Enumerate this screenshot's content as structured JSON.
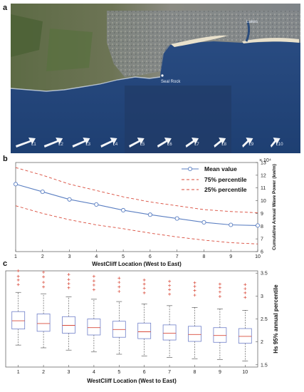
{
  "panels": {
    "a": "a",
    "b": "b",
    "c": "c"
  },
  "map": {
    "place_labels": [
      "Seal Rock",
      "Lakes"
    ],
    "location_labels": [
      "L1",
      "L2",
      "L3",
      "L4",
      "L5",
      "L6",
      "L7",
      "L8",
      "L9",
      "L10"
    ]
  },
  "chart_data": [
    {
      "type": "line",
      "x": [
        1,
        2,
        3,
        4,
        5,
        6,
        7,
        8,
        9,
        10
      ],
      "series": [
        {
          "name": "Mean value",
          "values": [
            11.3,
            10.7,
            10.1,
            9.7,
            9.25,
            8.9,
            8.6,
            8.3,
            8.1,
            8.05
          ],
          "color": "#5b7fc2"
        },
        {
          "name": "75% percentile",
          "values": [
            12.6,
            12.0,
            11.3,
            10.8,
            10.3,
            9.9,
            9.6,
            9.3,
            9.15,
            9.05
          ],
          "color": "#d94b3b"
        },
        {
          "name": "25% percentile",
          "values": [
            9.6,
            9.0,
            8.5,
            8.1,
            7.8,
            7.45,
            7.15,
            6.9,
            6.7,
            6.6
          ],
          "color": "#d94b3b"
        }
      ],
      "xlabel": "WestCliff Location (West to East)",
      "ylabel": "Cumulative Annual Wave Power (kw/m)",
      "exponent_label": "× 10⁴",
      "xlim": [
        1,
        10
      ],
      "ylim": [
        6,
        13
      ],
      "yticks": [
        6,
        7,
        8,
        9,
        10,
        11,
        12,
        13
      ],
      "legend": "top-right"
    },
    {
      "type": "box",
      "x": [
        1,
        2,
        3,
        4,
        5,
        6,
        7,
        8,
        9,
        10
      ],
      "boxes": [
        {
          "whisker_low": 1.93,
          "q1": 2.28,
          "median": 2.46,
          "q3": 2.66,
          "whisker_high": 3.08,
          "outliers": [
            3.25,
            3.35,
            3.43,
            3.55
          ]
        },
        {
          "whisker_low": 1.87,
          "q1": 2.23,
          "median": 2.4,
          "q3": 2.61,
          "whisker_high": 3.05,
          "outliers": [
            3.2,
            3.3,
            3.42,
            3.52
          ]
        },
        {
          "whisker_low": 1.82,
          "q1": 2.19,
          "median": 2.36,
          "q3": 2.55,
          "whisker_high": 2.98,
          "outliers": [
            3.18,
            3.27,
            3.36,
            3.47
          ]
        },
        {
          "whisker_low": 1.78,
          "q1": 2.15,
          "median": 2.31,
          "q3": 2.5,
          "whisker_high": 2.93,
          "outliers": [
            3.14,
            3.24,
            3.33,
            3.43
          ]
        },
        {
          "whisker_low": 1.73,
          "q1": 2.1,
          "median": 2.27,
          "q3": 2.45,
          "whisker_high": 2.88,
          "outliers": [
            3.1,
            3.2,
            3.3,
            3.39
          ]
        },
        {
          "whisker_low": 1.69,
          "q1": 2.07,
          "median": 2.22,
          "q3": 2.41,
          "whisker_high": 2.83,
          "outliers": [
            3.07,
            3.17,
            3.26,
            3.35
          ]
        },
        {
          "whisker_low": 1.66,
          "q1": 2.04,
          "median": 2.19,
          "q3": 2.37,
          "whisker_high": 2.79,
          "outliers": [
            3.04,
            3.14,
            3.23,
            3.32
          ]
        },
        {
          "whisker_low": 1.63,
          "q1": 2.01,
          "median": 2.16,
          "q3": 2.34,
          "whisker_high": 2.75,
          "outliers": [
            3.02,
            3.12,
            3.21,
            3.29
          ]
        },
        {
          "whisker_low": 1.61,
          "q1": 1.99,
          "median": 2.14,
          "q3": 2.31,
          "whisker_high": 2.72,
          "outliers": [
            2.99,
            3.09,
            3.18,
            3.26
          ]
        },
        {
          "whisker_low": 1.58,
          "q1": 1.97,
          "median": 2.12,
          "q3": 2.29,
          "whisker_high": 2.69,
          "outliers": [
            2.97,
            3.07,
            3.16,
            3.25
          ]
        }
      ],
      "xlabel": "WestCliff Location (West to East)",
      "ylabel": "Hs 95% annual percentile",
      "xlim": [
        0.5,
        10.5
      ],
      "ylim": [
        1.45,
        3.55
      ],
      "yticks": [
        1.5,
        2,
        2.5,
        3,
        3.5
      ],
      "colors": {
        "box": "#6f7fc9",
        "median": "#d94b3b",
        "whisker": "#444444",
        "outlier": "#d94b3b"
      }
    }
  ]
}
